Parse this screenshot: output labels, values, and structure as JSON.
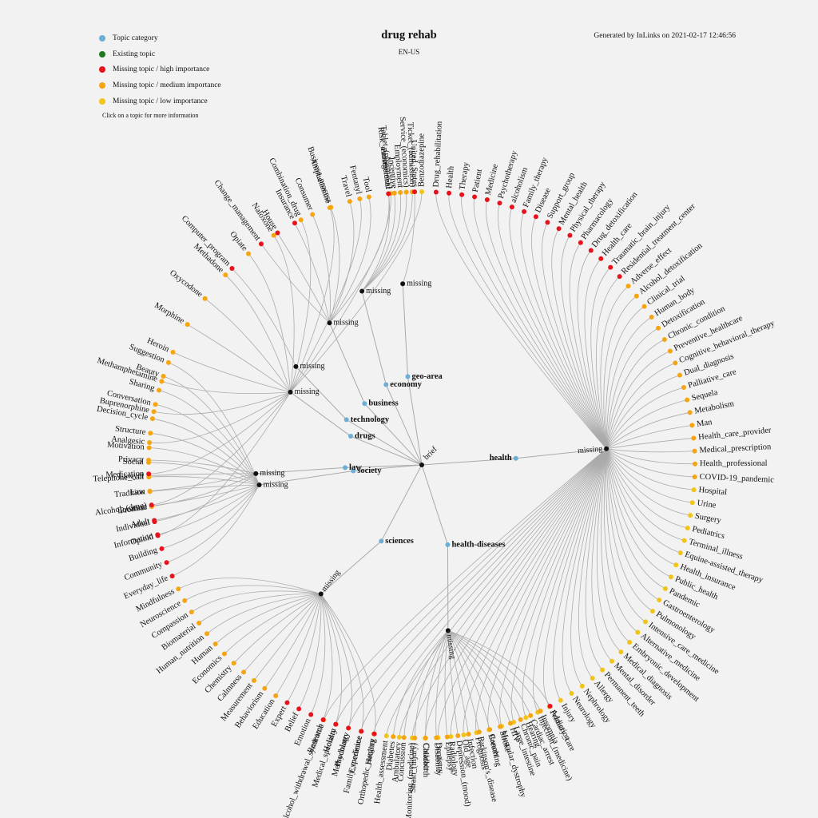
{
  "title": "drug rehab",
  "subtitle": "EN-US",
  "generated": "Generated by InLinks on 2021-02-17 12:46:56",
  "hint": "Click on a topic for more information",
  "colors": {
    "category": "#6baed6",
    "existing": "#1f7a1f",
    "high": "#e8121b",
    "medium": "#f5a511",
    "low": "#f0c419",
    "link": "#aaaaaa",
    "node": "#111111"
  },
  "legend": [
    {
      "label": "Topic category",
      "kind": "category"
    },
    {
      "label": "Existing topic",
      "kind": "existing"
    },
    {
      "label": "Missing topic / high importance",
      "kind": "high"
    },
    {
      "label": "Missing topic / medium importance",
      "kind": "medium"
    },
    {
      "label": "Missing topic / low importance",
      "kind": "low"
    }
  ],
  "root": "brief",
  "missing_label": "missing",
  "categories": [
    {
      "name": "health",
      "leaves": [
        [
          "Drug_rehabilitation",
          "high"
        ],
        [
          "Health",
          "high"
        ],
        [
          "Therapy",
          "high"
        ],
        [
          "Patient",
          "high"
        ],
        [
          "Medicine",
          "high"
        ],
        [
          "Psychotherapy",
          "high"
        ],
        [
          "alcoholism",
          "high"
        ],
        [
          "Family_therapy",
          "high"
        ],
        [
          "Disease",
          "high"
        ],
        [
          "Support_group",
          "high"
        ],
        [
          "Mental_health",
          "high"
        ],
        [
          "Physical_therapy",
          "high"
        ],
        [
          "Pharmacology",
          "high"
        ],
        [
          "Drug_detoxification",
          "high"
        ],
        [
          "Health_care",
          "high"
        ],
        [
          "Traumatic_brain_injury",
          "high"
        ],
        [
          "Residential_treatment_center",
          "high"
        ],
        [
          "Adverse_effect",
          "medium"
        ],
        [
          "Alcohol_detoxification",
          "medium"
        ],
        [
          "Clinical_trial",
          "medium"
        ],
        [
          "Human_body",
          "medium"
        ],
        [
          "Detoxification",
          "medium"
        ],
        [
          "Chronic_condition",
          "medium"
        ],
        [
          "Preventive_healthcare",
          "medium"
        ],
        [
          "Cognitive_behavioral_therapy",
          "medium"
        ],
        [
          "Dual_diagnosis",
          "medium"
        ],
        [
          "Palliative_care",
          "medium"
        ],
        [
          "Sequela",
          "medium"
        ],
        [
          "Metabolism",
          "medium"
        ],
        [
          "Man",
          "medium"
        ],
        [
          "Health_care_provider",
          "medium"
        ],
        [
          "Medical_prescription",
          "medium"
        ],
        [
          "Health_professional",
          "medium"
        ],
        [
          "COVID-19_pandemic",
          "medium"
        ],
        [
          "Hospital",
          "low"
        ],
        [
          "Urine",
          "low"
        ],
        [
          "Surgery",
          "low"
        ],
        [
          "Pediatrics",
          "low"
        ],
        [
          "Terminal_illness",
          "low"
        ],
        [
          "Equine-assisted_therapy",
          "low"
        ],
        [
          "Health_insurance",
          "low"
        ],
        [
          "Public_health",
          "low"
        ],
        [
          "Pandemic",
          "low"
        ],
        [
          "Gastroenterology",
          "low"
        ],
        [
          "Pulmonology",
          "low"
        ],
        [
          "Intensive_care_medicine",
          "low"
        ],
        [
          "Alternative_medicine",
          "low"
        ],
        [
          "Embryonic_development",
          "low"
        ],
        [
          "Medical_diagnosis",
          "low"
        ],
        [
          "Mental_disorder",
          "low"
        ],
        [
          "Permanent_teeth",
          "low"
        ],
        [
          "Allergy",
          "low"
        ],
        [
          "Nephrology",
          "low"
        ],
        [
          "Neurology",
          "low"
        ],
        [
          "Injury",
          "low"
        ],
        [
          "Primary_care",
          "low"
        ],
        [
          "Injection_(medicine)",
          "low"
        ],
        [
          "Hearing",
          "low"
        ],
        [
          "Large_intestine",
          "low"
        ],
        [
          "Muscular_dystrophy",
          "low"
        ],
        [
          "Breathing",
          "low"
        ],
        [
          "Prognosis",
          "low"
        ],
        [
          "Old_age",
          "low"
        ],
        [
          "Radiology",
          "low"
        ],
        [
          "Dentistry",
          "low"
        ],
        [
          "Childbirth",
          "low"
        ],
        [
          "Monitoring_(medicine)",
          "low"
        ],
        [
          "Ambulatory",
          "low"
        ],
        [
          "Health_assessment",
          "low"
        ],
        [
          "Orthopedic_surgery",
          "low"
        ],
        [
          "Family_medicine",
          "low"
        ],
        [
          "Psychiatry",
          "low"
        ],
        [
          "Medical_specialty",
          "low"
        ],
        [
          "Alcohol_withdrawal_syndrome",
          "low"
        ]
      ]
    },
    {
      "name": "health-diseases",
      "leaves": [
        [
          "Addiction",
          "high"
        ],
        [
          "Insomnia",
          "medium"
        ],
        [
          "Cardiac_arrest",
          "medium"
        ],
        [
          "Chronic_pain",
          "medium"
        ],
        [
          "HIV",
          "medium"
        ],
        [
          "Stroke",
          "medium"
        ],
        [
          "Cancer",
          "medium"
        ],
        [
          "Parkinson's_disease",
          "medium"
        ],
        [
          "Infection",
          "medium"
        ],
        [
          "Depression_(mood)",
          "medium"
        ],
        [
          "Epilepsy",
          "medium"
        ],
        [
          "Disability",
          "medium"
        ],
        [
          "Cataract",
          "medium"
        ],
        [
          "Strain_(injury)",
          "medium"
        ],
        [
          "Concussion",
          "medium"
        ],
        [
          "Diabetes",
          "medium"
        ]
      ]
    },
    {
      "name": "sciences",
      "leaves": [
        [
          "Healing",
          "high"
        ],
        [
          "Experience",
          "high"
        ],
        [
          "Methodology",
          "high"
        ],
        [
          "Holism",
          "high"
        ],
        [
          "Research",
          "high"
        ],
        [
          "Emotion",
          "high"
        ],
        [
          "Belief",
          "high"
        ],
        [
          "Expert",
          "high"
        ],
        [
          "Education",
          "medium"
        ],
        [
          "Behaviorism",
          "medium"
        ],
        [
          "Measurement",
          "medium"
        ],
        [
          "Calmness",
          "medium"
        ],
        [
          "Chemistry",
          "medium"
        ],
        [
          "Economics",
          "medium"
        ],
        [
          "Human",
          "medium"
        ],
        [
          "Human_nutrition",
          "medium"
        ],
        [
          "Biomaterial",
          "medium"
        ],
        [
          "Compassion",
          "medium"
        ],
        [
          "Neuroscience",
          "medium"
        ],
        [
          "Mindfulness",
          "medium"
        ]
      ]
    },
    {
      "name": "society",
      "leaves": [
        [
          "Everyday_life",
          "high"
        ],
        [
          "Community",
          "high"
        ],
        [
          "Building",
          "high"
        ],
        [
          "Information",
          "high"
        ],
        [
          "Adult",
          "high"
        ],
        [
          "Location",
          "high"
        ],
        [
          "Tradition",
          "medium"
        ],
        [
          "Telephone_call",
          "medium"
        ],
        [
          "Social",
          "medium"
        ],
        [
          "Motivation",
          "medium"
        ],
        [
          "Structure",
          "medium"
        ],
        [
          "Decision_cycle",
          "medium"
        ],
        [
          "Conversation",
          "medium"
        ],
        [
          "Sharing",
          "medium"
        ],
        [
          "Beauty",
          "medium"
        ],
        [
          "Suggestion",
          "medium"
        ]
      ]
    },
    {
      "name": "law",
      "leaves": [
        [
          "Individual",
          "high"
        ],
        [
          "Promise",
          "medium"
        ],
        [
          "Law",
          "medium"
        ],
        [
          "Lawyer",
          "medium"
        ],
        [
          "Privacy",
          "medium"
        ]
      ]
    },
    {
      "name": "drugs",
      "leaves": [
        [
          "Opioid",
          "high"
        ],
        [
          "Alcohol_(drug)",
          "high"
        ],
        [
          "Medication",
          "high"
        ],
        [
          "Analgesic",
          "medium"
        ],
        [
          "Buprenorphine",
          "medium"
        ],
        [
          "Methamphetamine",
          "medium"
        ],
        [
          "Heroin",
          "medium"
        ],
        [
          "Morphine",
          "medium"
        ],
        [
          "Oxycodone",
          "medium"
        ],
        [
          "Methadone",
          "medium"
        ],
        [
          "Opiate",
          "medium"
        ],
        [
          "Naloxone",
          "medium"
        ],
        [
          "Combination_drug",
          "medium"
        ],
        [
          "Amphetamine",
          "medium"
        ],
        [
          "Fentanyl",
          "medium"
        ],
        [
          "Tablet_(pharmacy)",
          "medium"
        ],
        [
          "Benzodiazepine",
          "low"
        ]
      ]
    },
    {
      "name": "technology",
      "leaves": [
        [
          "Computer_program",
          "high"
        ]
      ]
    },
    {
      "name": "business",
      "leaves": [
        [
          "Change_management",
          "high"
        ],
        [
          "House",
          "high"
        ],
        [
          "Insurance",
          "high"
        ],
        [
          "Consumer",
          "medium"
        ],
        [
          "Business_process",
          "medium"
        ],
        [
          "Travel",
          "medium"
        ],
        [
          "Tool",
          "medium"
        ],
        [
          "Risk_management",
          "medium"
        ]
      ]
    },
    {
      "name": "economy",
      "leaves": [
        [
          "Professional",
          "high"
        ],
        [
          "Incentive",
          "medium"
        ],
        [
          "Employment",
          "medium"
        ],
        [
          "Service_(economics)",
          "medium"
        ],
        [
          "Ticket_(admission)",
          "medium"
        ]
      ]
    },
    {
      "name": "geo-area",
      "leaves": [
        [
          "United_States",
          "high"
        ]
      ]
    }
  ]
}
